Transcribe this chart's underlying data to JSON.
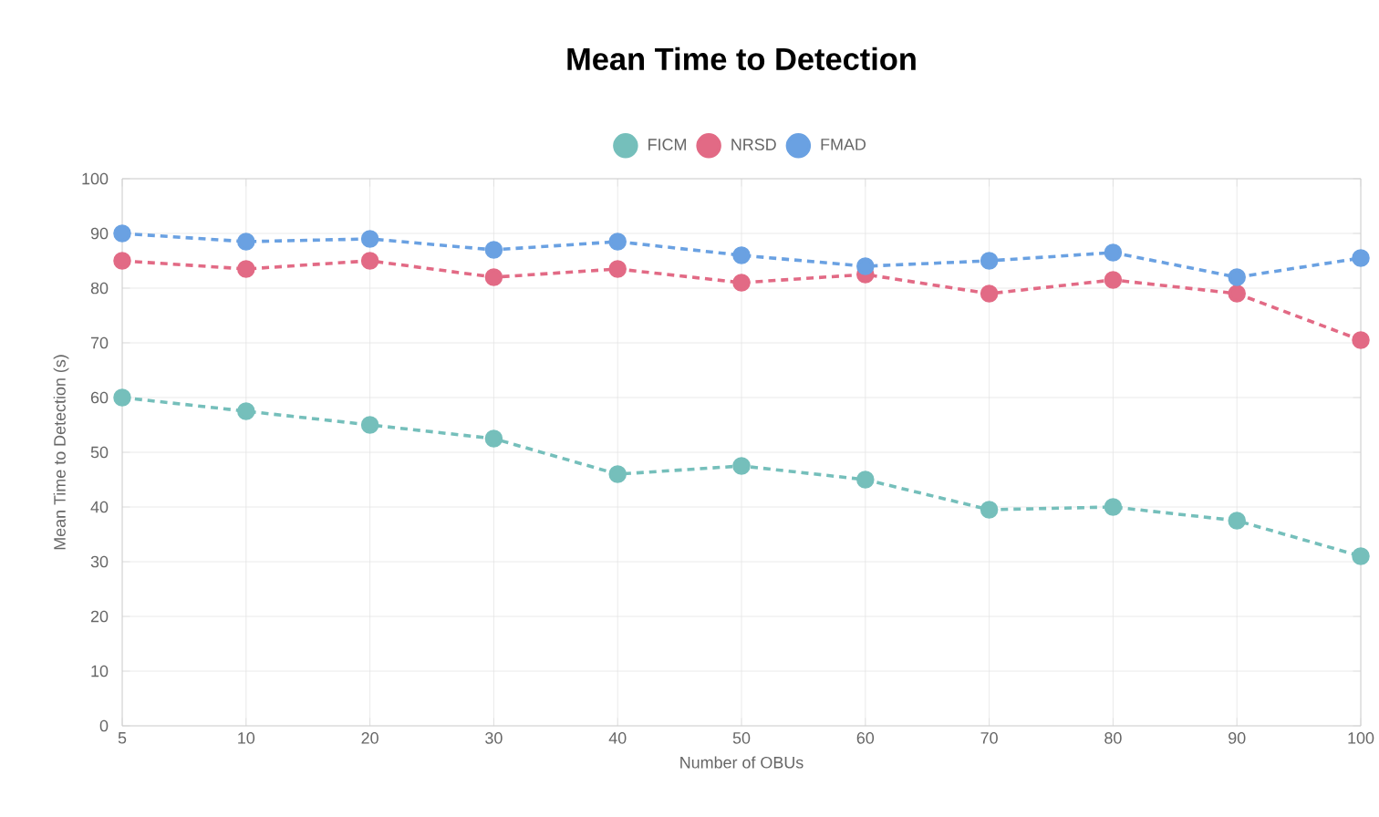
{
  "chart_data": {
    "type": "line",
    "title": "Mean Time to Detection",
    "xlabel": "Number of OBUs",
    "ylabel": "Mean Time to Detection (s)",
    "categories": [
      "5",
      "10",
      "20",
      "30",
      "40",
      "50",
      "60",
      "70",
      "80",
      "90",
      "100"
    ],
    "series": [
      {
        "name": "FICM",
        "color": "#75bfbb",
        "values": [
          60,
          57.5,
          55,
          52.5,
          46,
          47.5,
          45,
          39.5,
          40,
          37.5,
          31
        ]
      },
      {
        "name": "NRSD",
        "color": "#e26a85",
        "values": [
          85,
          83.5,
          85,
          82,
          83.5,
          81,
          82.5,
          79,
          81.5,
          79,
          70.5
        ]
      },
      {
        "name": "FMAD",
        "color": "#6aa1e2",
        "values": [
          90,
          88.5,
          89,
          87,
          88.5,
          86,
          84,
          85,
          86.5,
          82,
          85.5
        ]
      }
    ],
    "ylim": [
      0,
      100
    ],
    "yticks": [
      0,
      10,
      20,
      30,
      40,
      50,
      60,
      70,
      80,
      90,
      100
    ],
    "grid": true,
    "legend": "top",
    "marker": "circle",
    "line_style": "dashed"
  }
}
